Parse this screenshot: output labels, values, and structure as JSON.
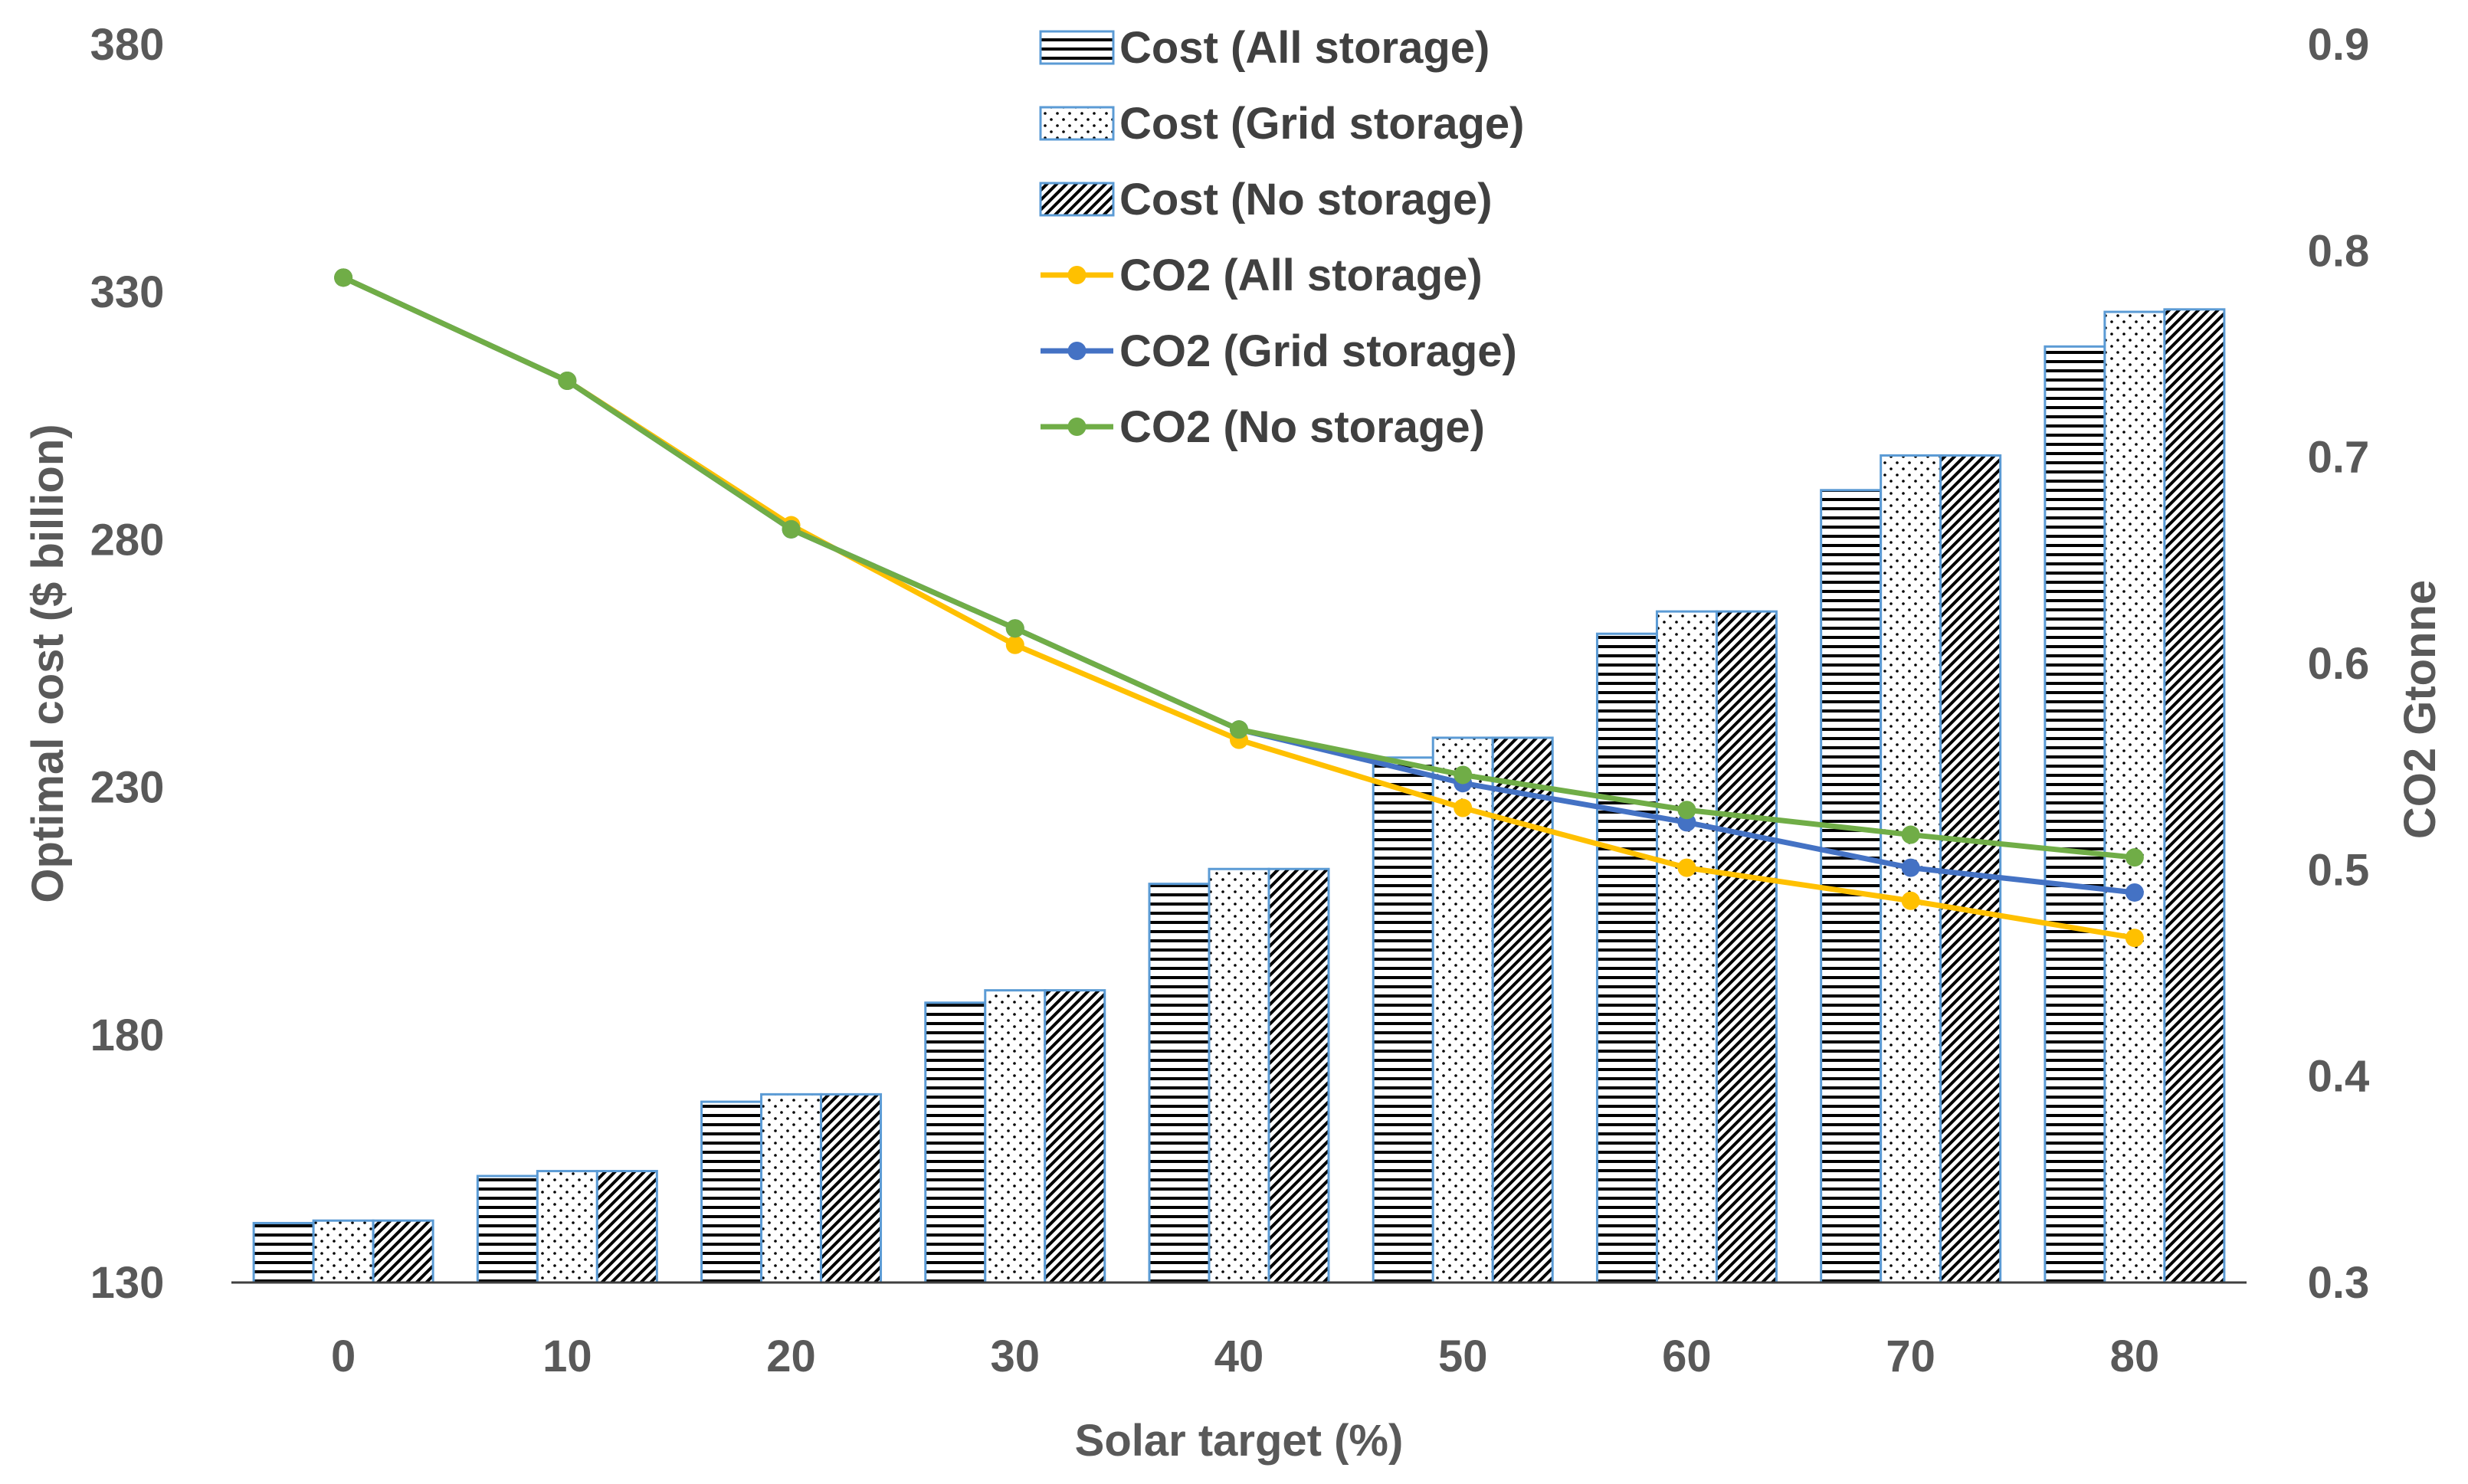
{
  "chart_data": {
    "type": "bar+line",
    "title": "",
    "xlabel": "Solar target (%)",
    "ylabel": "Optimal cost ($ billion)",
    "y2label": "CO2 Gtonne",
    "categories": [
      "0",
      "10",
      "20",
      "30",
      "40",
      "50",
      "60",
      "70",
      "80"
    ],
    "ylim": [
      130,
      380
    ],
    "yticks": [
      "130",
      "180",
      "230",
      "280",
      "330",
      "380"
    ],
    "y2lim": [
      0.3,
      0.9
    ],
    "y2ticks": [
      "0.3",
      "0.4",
      "0.5",
      "0.6",
      "0.7",
      "0.8",
      "0.9"
    ],
    "grid": false,
    "legend_position": "top-center",
    "bar_series": [
      {
        "name": "Cost (All storage)",
        "pattern": "horizontal",
        "values": [
          142,
          151.5,
          166.5,
          186.5,
          210.5,
          236,
          261,
          290,
          319
        ]
      },
      {
        "name": "Cost (Grid storage)",
        "pattern": "dots",
        "values": [
          142.5,
          152.5,
          168,
          189,
          213.5,
          240,
          265.5,
          297,
          326
        ]
      },
      {
        "name": "Cost (No storage)",
        "pattern": "diagonal",
        "values": [
          142.5,
          152.5,
          168,
          189,
          213.5,
          240,
          265.5,
          297,
          326.5
        ]
      }
    ],
    "line_series": [
      {
        "name": "CO2 (All storage)",
        "color": "#FFC000",
        "values": [
          0.787,
          0.737,
          0.667,
          0.609,
          0.563,
          0.53,
          0.501,
          0.485,
          0.467
        ]
      },
      {
        "name": "CO2 (Grid storage)",
        "color": "#4472C4",
        "values": [
          0.787,
          0.737,
          0.665,
          0.617,
          0.568,
          0.542,
          0.523,
          0.501,
          0.489
        ]
      },
      {
        "name": "CO2 (No storage)",
        "color": "#70AD47",
        "values": [
          0.787,
          0.737,
          0.665,
          0.617,
          0.568,
          0.546,
          0.529,
          0.517,
          0.506
        ]
      }
    ],
    "colors": {
      "bar_border": "#5B9BD5",
      "bar_pattern": "#000000",
      "axis_line": "#404040",
      "text": "#595959"
    }
  }
}
